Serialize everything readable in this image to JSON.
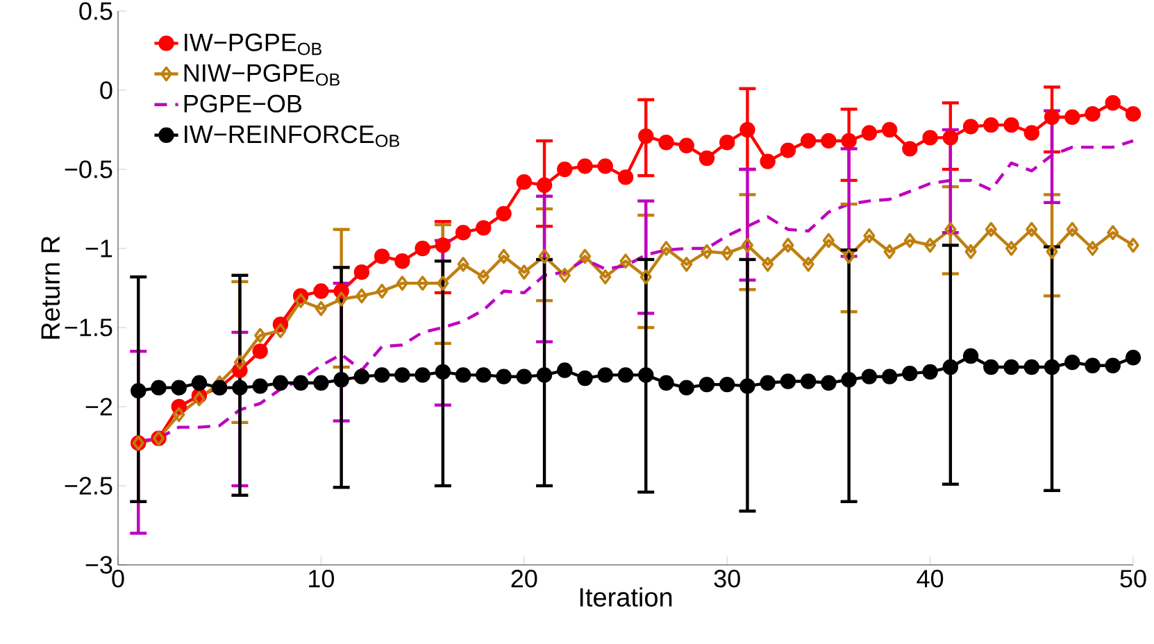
{
  "chart_data": {
    "type": "line",
    "xlabel": "Iteration",
    "ylabel": "Return R",
    "x": [
      1,
      2,
      3,
      4,
      5,
      6,
      7,
      8,
      9,
      10,
      11,
      12,
      13,
      14,
      15,
      16,
      17,
      18,
      19,
      20,
      21,
      22,
      23,
      24,
      25,
      26,
      27,
      28,
      29,
      30,
      31,
      32,
      33,
      34,
      35,
      36,
      37,
      38,
      39,
      40,
      41,
      42,
      43,
      44,
      45,
      46,
      47,
      48,
      49,
      50
    ],
    "xlim": [
      0,
      50
    ],
    "xticks": [
      0,
      10,
      20,
      30,
      40,
      50
    ],
    "ylim": [
      -3,
      0.5
    ],
    "yticks": [
      {
        "value": -3,
        "label": "−3"
      },
      {
        "value": -2.5,
        "label": "−2.5"
      },
      {
        "value": -2,
        "label": "−2"
      },
      {
        "value": -1.5,
        "label": "−1.5"
      },
      {
        "value": -1,
        "label": "−1"
      },
      {
        "value": -0.5,
        "label": "−0.5"
      },
      0,
      0.5
    ],
    "grid": false,
    "legend": "top left",
    "series": [
      {
        "name": "IW−PGPE$_{OB}$",
        "color": "#ff0000",
        "marker": "circle",
        "line_style": "solid",
        "values": [
          -2.23,
          -2.2,
          -2.0,
          -1.93,
          -1.88,
          -1.77,
          -1.65,
          -1.48,
          -1.3,
          -1.27,
          -1.27,
          -1.15,
          -1.05,
          -1.08,
          -1.0,
          -0.98,
          -0.9,
          -0.87,
          -0.78,
          -0.58,
          -0.6,
          -0.5,
          -0.48,
          -0.48,
          -0.55,
          -0.29,
          -0.33,
          -0.35,
          -0.43,
          -0.33,
          -0.25,
          -0.45,
          -0.38,
          -0.32,
          -0.32,
          -0.32,
          -0.27,
          -0.25,
          -0.37,
          -0.3,
          -0.3,
          -0.23,
          -0.22,
          -0.22,
          -0.27,
          -0.17,
          -0.17,
          -0.15,
          -0.08,
          -0.15
        ],
        "errors": [
          null,
          null,
          null,
          null,
          null,
          null,
          null,
          null,
          null,
          null,
          null,
          null,
          null,
          null,
          null,
          [
            -1.28,
            -0.83
          ],
          null,
          null,
          null,
          null,
          [
            -0.86,
            -0.32
          ],
          null,
          null,
          null,
          null,
          [
            -0.54,
            -0.06
          ],
          null,
          null,
          null,
          null,
          [
            -0.5,
            0.01
          ],
          null,
          null,
          null,
          null,
          [
            -0.57,
            -0.12
          ],
          null,
          null,
          null,
          null,
          [
            -0.5,
            -0.08
          ],
          null,
          null,
          null,
          null,
          [
            -0.39,
            0.02
          ],
          null,
          null,
          null,
          null
        ]
      },
      {
        "name": "NIW−PGPE$_{OB}$",
        "color": "#bf7f0f",
        "marker": "diamond",
        "line_style": "solid",
        "values": [
          -2.23,
          -2.2,
          -2.05,
          -1.95,
          -1.85,
          -1.72,
          -1.55,
          -1.52,
          -1.33,
          -1.38,
          -1.32,
          -1.3,
          -1.27,
          -1.22,
          -1.22,
          -1.22,
          -1.1,
          -1.18,
          -1.05,
          -1.15,
          -1.05,
          -1.17,
          -1.05,
          -1.18,
          -1.08,
          -1.18,
          -1.0,
          -1.1,
          -1.02,
          -1.03,
          -0.98,
          -1.1,
          -0.98,
          -1.1,
          -0.95,
          -1.05,
          -0.92,
          -1.02,
          -0.95,
          -0.98,
          -0.88,
          -1.02,
          -0.88,
          -1.0,
          -0.88,
          -1.02,
          -0.88,
          -1.0,
          -0.9,
          -0.98
        ],
        "errors": [
          null,
          null,
          null,
          null,
          null,
          [
            -2.1,
            -1.21
          ],
          null,
          null,
          null,
          null,
          [
            -1.75,
            -0.88
          ],
          null,
          null,
          null,
          null,
          [
            -1.6,
            -0.85
          ],
          null,
          null,
          null,
          null,
          [
            -1.33,
            -0.75
          ],
          null,
          null,
          null,
          null,
          [
            -1.5,
            -0.79
          ],
          null,
          null,
          null,
          null,
          [
            -1.26,
            -0.66
          ],
          null,
          null,
          null,
          null,
          [
            -1.4,
            -0.72
          ],
          null,
          null,
          null,
          null,
          [
            -1.16,
            -0.61
          ],
          null,
          null,
          null,
          null,
          [
            -1.3,
            -0.66
          ],
          null,
          null,
          null,
          null
        ]
      },
      {
        "name": "PGPE−OB",
        "color": "#bf00bf",
        "marker": "none",
        "line_style": "dashed",
        "values": [
          -2.22,
          -2.2,
          -2.13,
          -2.13,
          -2.12,
          -2.02,
          -1.98,
          -1.89,
          -1.83,
          -1.74,
          -1.67,
          -1.77,
          -1.62,
          -1.61,
          -1.53,
          -1.5,
          -1.46,
          -1.39,
          -1.27,
          -1.28,
          -1.17,
          -1.15,
          -1.07,
          -1.13,
          -1.11,
          -1.04,
          -1.01,
          -1.0,
          -1.0,
          -0.92,
          -0.86,
          -0.8,
          -0.88,
          -0.89,
          -0.77,
          -0.72,
          -0.7,
          -0.69,
          -0.64,
          -0.59,
          -0.57,
          -0.57,
          -0.63,
          -0.46,
          -0.51,
          -0.41,
          -0.36,
          -0.36,
          -0.36,
          -0.32
        ],
        "errors": [
          [
            -2.8,
            -1.65
          ],
          null,
          null,
          null,
          null,
          [
            -2.5,
            -1.53
          ],
          null,
          null,
          null,
          null,
          [
            -2.09,
            -1.22
          ],
          null,
          null,
          null,
          null,
          [
            -1.99,
            -0.95
          ],
          null,
          null,
          null,
          null,
          [
            -1.59,
            -0.67
          ],
          null,
          null,
          null,
          null,
          [
            -1.41,
            -0.7
          ],
          null,
          null,
          null,
          null,
          [
            -1.2,
            -0.5
          ],
          null,
          null,
          null,
          null,
          [
            -1.05,
            -0.37
          ],
          null,
          null,
          null,
          null,
          [
            -0.9,
            -0.25
          ],
          null,
          null,
          null,
          null,
          [
            -0.71,
            -0.13
          ],
          null,
          null,
          null,
          null
        ]
      },
      {
        "name": "IW−REINFORCE$_{OB}$",
        "color": "#000000",
        "marker": "circle",
        "line_style": "solid",
        "values": [
          -1.9,
          -1.88,
          -1.88,
          -1.85,
          -1.88,
          -1.88,
          -1.87,
          -1.85,
          -1.85,
          -1.85,
          -1.83,
          -1.81,
          -1.8,
          -1.8,
          -1.8,
          -1.78,
          -1.8,
          -1.8,
          -1.81,
          -1.81,
          -1.8,
          -1.77,
          -1.82,
          -1.8,
          -1.8,
          -1.8,
          -1.85,
          -1.88,
          -1.86,
          -1.86,
          -1.87,
          -1.85,
          -1.84,
          -1.84,
          -1.85,
          -1.83,
          -1.81,
          -1.81,
          -1.79,
          -1.78,
          -1.75,
          -1.68,
          -1.75,
          -1.75,
          -1.75,
          -1.75,
          -1.72,
          -1.74,
          -1.74,
          -1.69
        ],
        "errors": [
          [
            -2.6,
            -1.18
          ],
          null,
          null,
          null,
          null,
          [
            -2.56,
            -1.17
          ],
          null,
          null,
          null,
          null,
          [
            -2.51,
            -1.12
          ],
          null,
          null,
          null,
          null,
          [
            -2.5,
            -1.08
          ],
          null,
          null,
          null,
          null,
          [
            -2.5,
            -1.07
          ],
          null,
          null,
          null,
          null,
          [
            -2.54,
            -1.07
          ],
          null,
          null,
          null,
          null,
          [
            -2.66,
            -1.07
          ],
          null,
          null,
          null,
          null,
          [
            -2.6,
            -1.01
          ],
          null,
          null,
          null,
          null,
          [
            -2.49,
            -0.98
          ],
          null,
          null,
          null,
          null,
          [
            -2.53,
            -0.99
          ],
          null,
          null,
          null,
          null
        ]
      }
    ]
  }
}
